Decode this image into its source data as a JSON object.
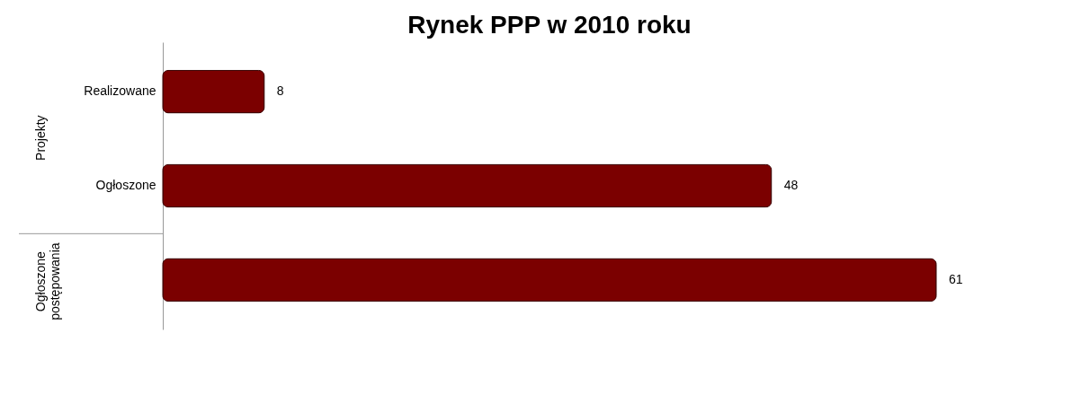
{
  "chart_data": {
    "type": "bar",
    "orientation": "horizontal",
    "title": "Rynek PPP w 2010 roku",
    "categories": [
      "Realizowane",
      "Ogłoszone",
      null
    ],
    "values": [
      8,
      48,
      61
    ],
    "color": "#7b0000",
    "data_labels": true,
    "grid": false,
    "annotations": [
      "Projekty",
      "Ogłoszone postępowania"
    ]
  }
}
